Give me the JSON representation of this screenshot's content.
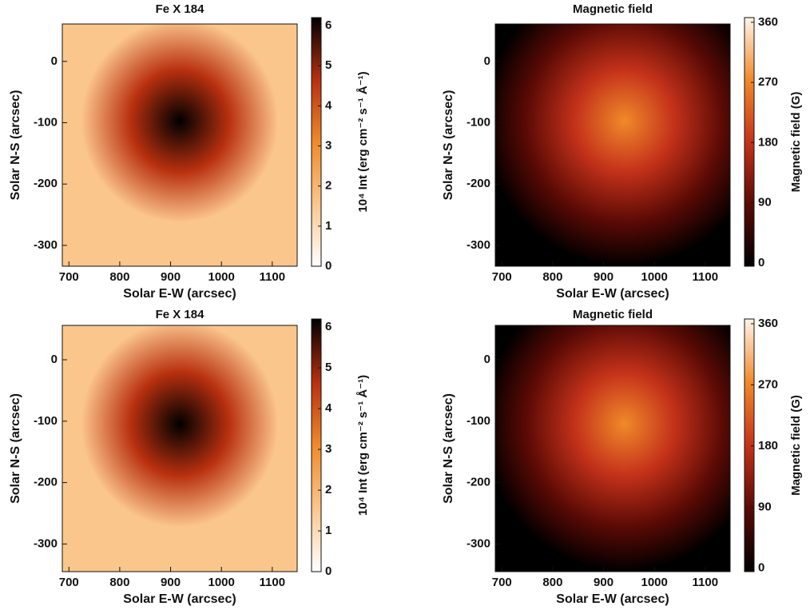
{
  "chart_data": [
    {
      "type": "image",
      "title": "Fe X 184",
      "xlabel": "Solar E-W (arcsec)",
      "ylabel": "Solar N-S (arcsec)",
      "xlim": [
        687,
        1149
      ],
      "xticks": [
        700,
        800,
        900,
        1000,
        1100
      ],
      "ylim": [
        -334,
        61
      ],
      "yticks": [
        0,
        -100,
        -200,
        -300
      ],
      "colorbar": {
        "label": "10⁴ Int (erg cm⁻² s⁻¹ Å⁻¹)",
        "lim": [
          0,
          6.2
        ],
        "ticks": [
          0,
          1,
          2,
          3,
          4,
          5,
          6
        ],
        "cmap": [
          "#ffffff",
          "#fbc68c",
          "#f08a2a",
          "#b8300f",
          "#000000"
        ]
      }
    },
    {
      "type": "image",
      "title": "Magnetic field",
      "xlabel": "Solar E-W (arcsec)",
      "ylabel": "Solar N-S (arcsec)",
      "xlim": [
        687,
        1149
      ],
      "xticks": [
        700,
        800,
        900,
        1000,
        1100
      ],
      "ylim": [
        -334,
        61
      ],
      "yticks": [
        0,
        -100,
        -200,
        -300
      ],
      "colorbar": {
        "label": "Magnetic field (G)",
        "lim": [
          -5,
          367
        ],
        "ticks": [
          0,
          90,
          180,
          270,
          360
        ],
        "cmap": [
          "#000000",
          "#5a0a05",
          "#c4321a",
          "#f08a2a",
          "#fff4e8"
        ]
      }
    },
    {
      "type": "image",
      "title": "Fe X 184",
      "xlabel": "Solar E-W (arcsec)",
      "ylabel": "Solar N-S (arcsec)",
      "xlim": [
        687,
        1149
      ],
      "xticks": [
        700,
        800,
        900,
        1000,
        1100
      ],
      "ylim": [
        -345,
        56
      ],
      "yticks": [
        0,
        -100,
        -200,
        -300
      ],
      "colorbar": {
        "label": "10⁴ Int (erg cm⁻² s⁻¹ Å⁻¹)",
        "lim": [
          0,
          6.2
        ],
        "ticks": [
          0,
          1,
          2,
          3,
          4,
          5,
          6
        ],
        "cmap": [
          "#ffffff",
          "#fbc68c",
          "#f08a2a",
          "#b8300f",
          "#000000"
        ]
      }
    },
    {
      "type": "image",
      "title": "Magnetic field",
      "xlabel": "Solar E-W (arcsec)",
      "ylabel": "Solar N-S (arcsec)",
      "xlim": [
        687,
        1149
      ],
      "xticks": [
        700,
        800,
        900,
        1000,
        1100
      ],
      "ylim": [
        -345,
        56
      ],
      "yticks": [
        0,
        -100,
        -200,
        -300
      ],
      "colorbar": {
        "label": "Magnetic field (G)",
        "lim": [
          -5,
          367
        ],
        "ticks": [
          0,
          90,
          180,
          270,
          360
        ],
        "cmap": [
          "#000000",
          "#5a0a05",
          "#c4321a",
          "#f08a2a",
          "#fff4e8"
        ]
      }
    }
  ]
}
